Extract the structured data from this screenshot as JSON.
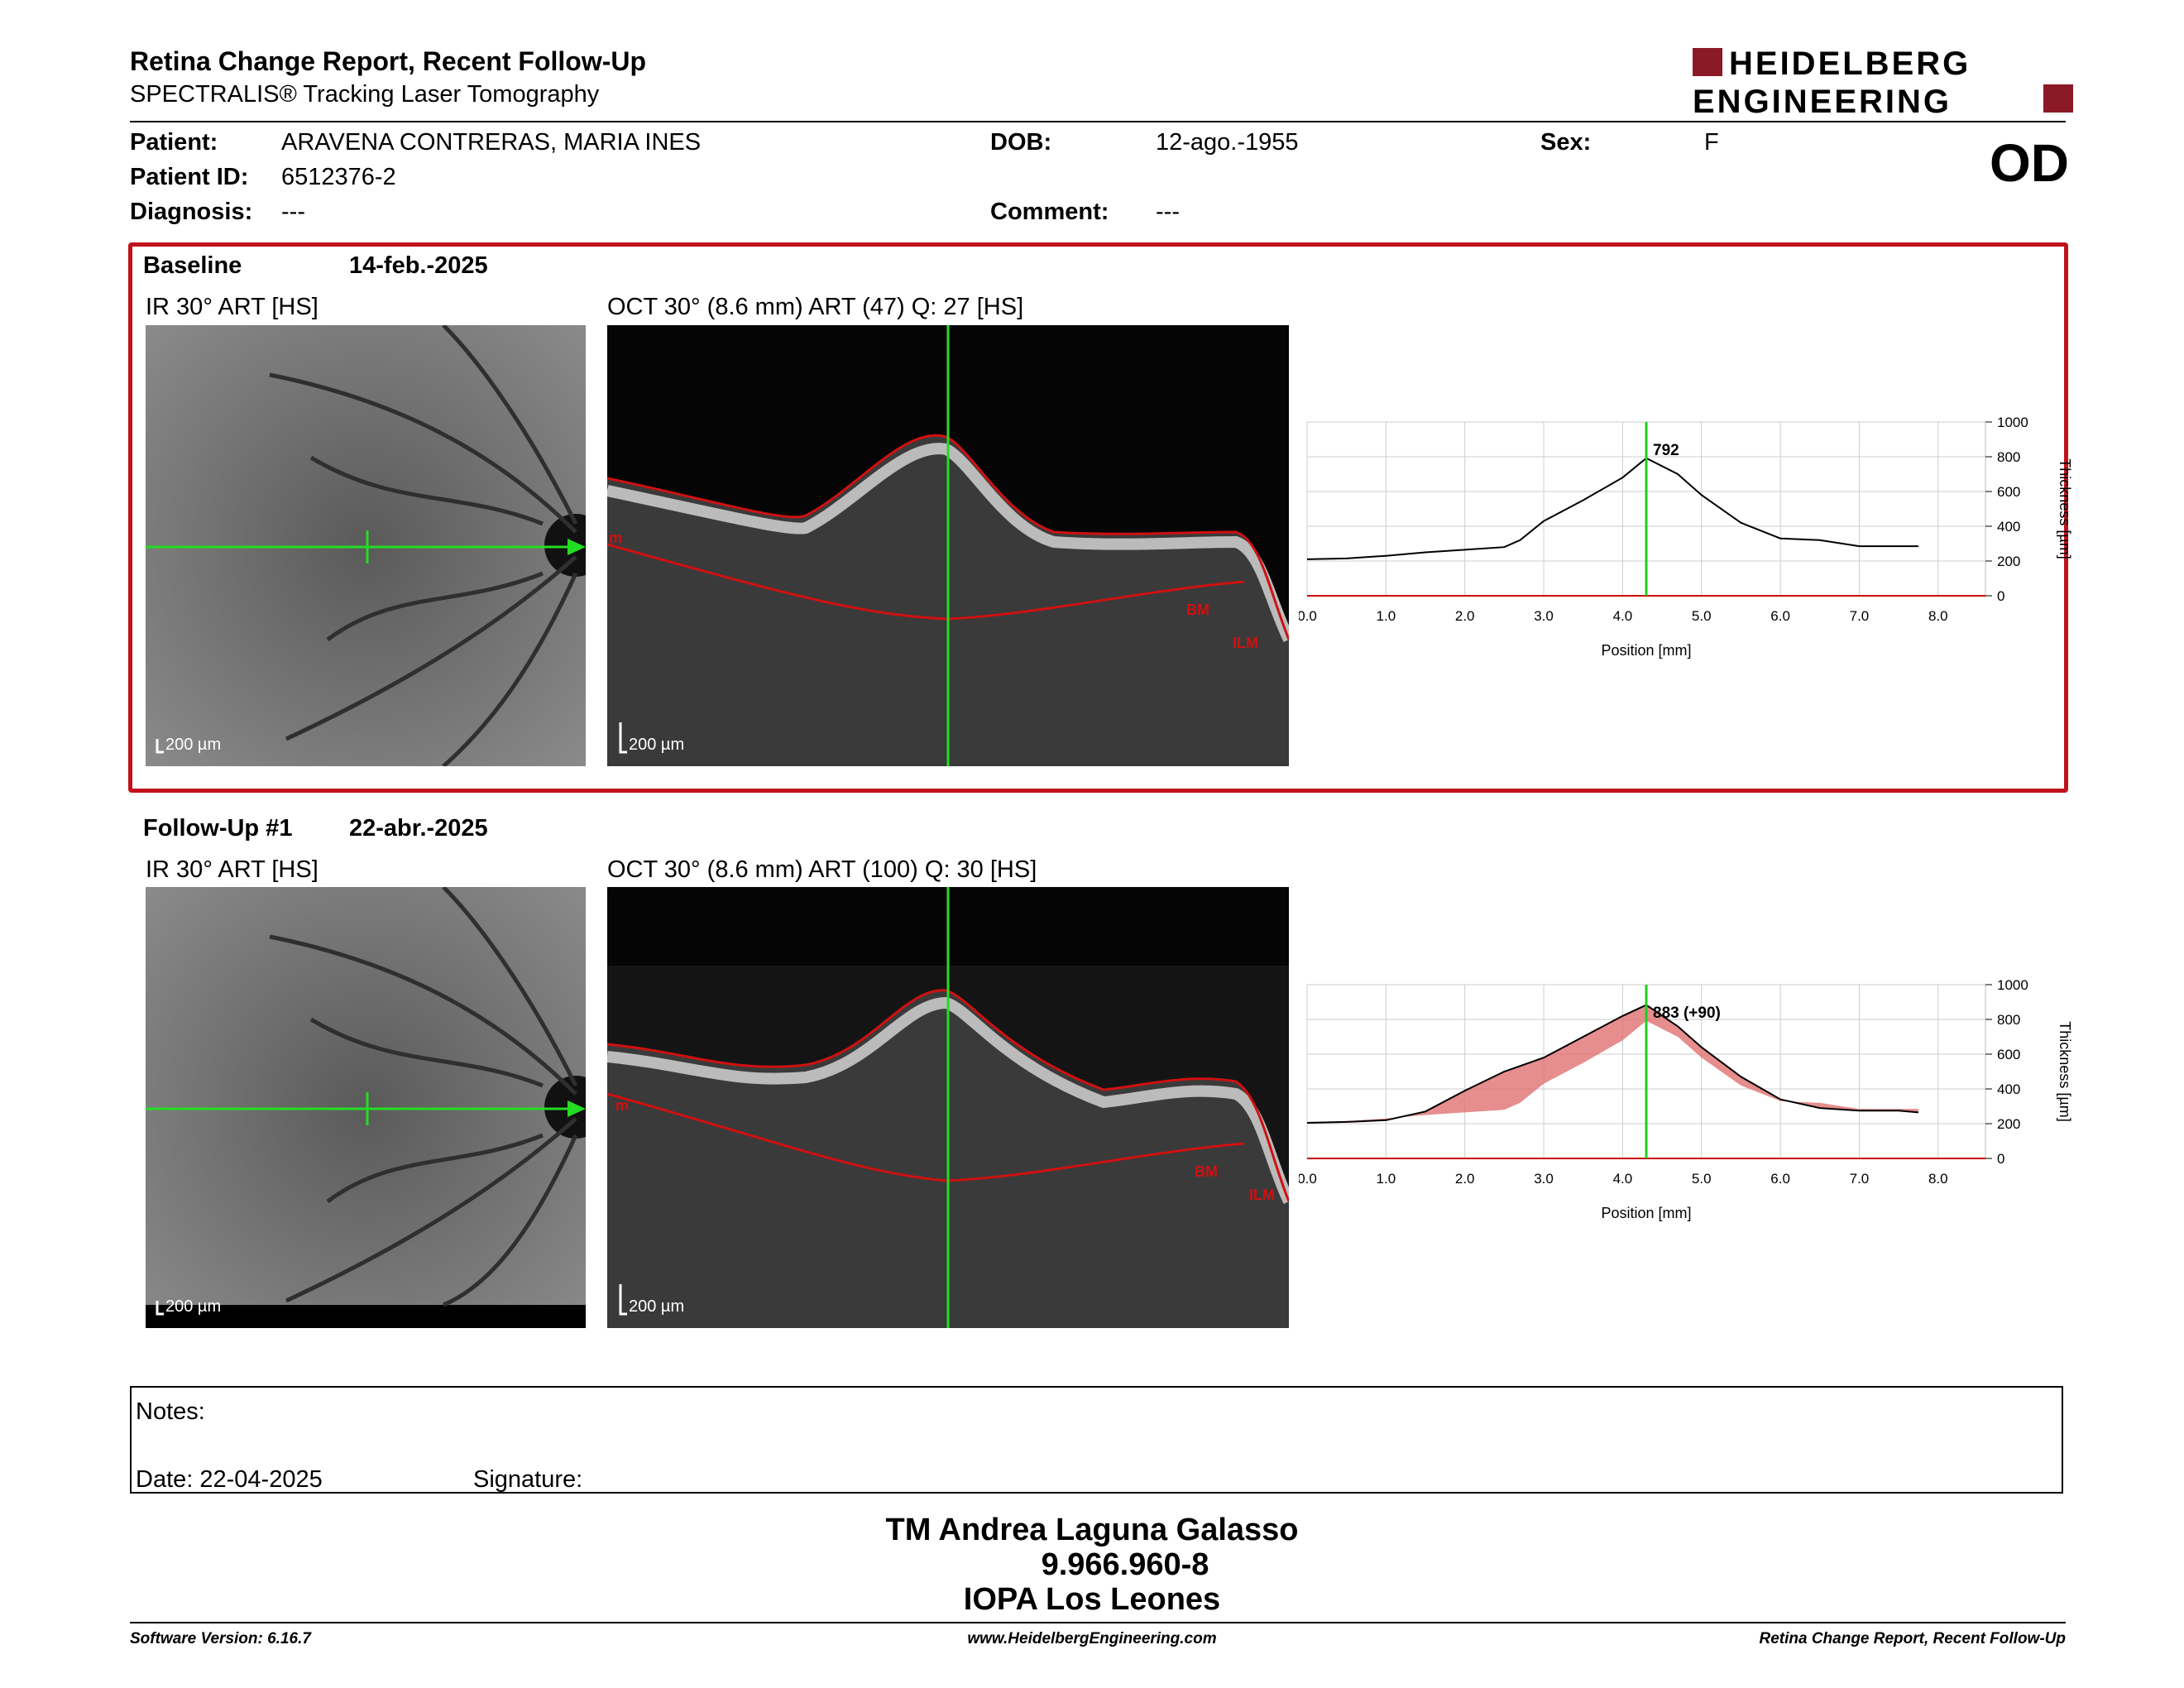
{
  "header": {
    "title": "Retina Change Report, Recent Follow-Up",
    "subtitle": "SPECTRALIS® Tracking Laser Tomography",
    "logo_line1": "HEIDELBERG",
    "logo_line2": "ENGINEERING",
    "brand_color": "#8b1a26"
  },
  "patient": {
    "patient_label": "Patient:",
    "patient_value": "ARAVENA CONTRERAS, MARIA INES",
    "id_label": "Patient ID:",
    "id_value": "6512376-2",
    "diagnosis_label": "Diagnosis:",
    "diagnosis_value": "---",
    "dob_label": "DOB:",
    "dob_value": "12-ago.-1955",
    "comment_label": "Comment:",
    "comment_value": "---",
    "sex_label": "Sex:",
    "sex_value": "F",
    "eye": "OD"
  },
  "baseline": {
    "label": "Baseline",
    "date": "14-feb.-2025",
    "ir_title": "IR 30° ART [HS]",
    "oct_title": "OCT 30° (8.6 mm) ART (47) Q: 27 [HS]",
    "scale": "200 µm",
    "layer_ilm": "ILM",
    "layer_bm": "BM",
    "layer_m": "m"
  },
  "followup": {
    "label": "Follow-Up #1",
    "date": "22-abr.-2025",
    "ir_title": "IR 30° ART [HS]",
    "oct_title": "OCT 30° (8.6 mm) ART (100) Q: 30 [HS]",
    "scale": "200 µm",
    "layer_ilm": "ILM",
    "layer_bm": "BM",
    "layer_m": "m"
  },
  "chart_data": [
    {
      "type": "line",
      "xlabel": "Position [mm]",
      "ylabel": "Thickness [µm]",
      "xlim": [
        0,
        8.6
      ],
      "ylim": [
        0,
        1000
      ],
      "xticks": [
        "0.0",
        "1.0",
        "2.0",
        "3.0",
        "4.0",
        "5.0",
        "6.0",
        "7.0",
        "8.0"
      ],
      "yticks": [
        "0",
        "200",
        "400",
        "600",
        "800",
        "1000"
      ],
      "cursor_x": 4.3,
      "cursor_label": "792",
      "series": [
        {
          "x": [
            0,
            0.5,
            1.0,
            1.5,
            2.0,
            2.5,
            2.7,
            3.0,
            3.5,
            4.0,
            4.3,
            4.7,
            5.0,
            5.5,
            6.0,
            6.5,
            7.0,
            7.5,
            7.75
          ],
          "y": [
            210,
            215,
            230,
            250,
            265,
            280,
            320,
            430,
            550,
            680,
            792,
            700,
            580,
            420,
            330,
            320,
            285,
            285,
            285
          ]
        }
      ]
    },
    {
      "type": "line",
      "xlabel": "Position [mm]",
      "ylabel": "Thickness [µm]",
      "xlim": [
        0,
        8.6
      ],
      "ylim": [
        0,
        1000
      ],
      "xticks": [
        "0.0",
        "1.0",
        "2.0",
        "3.0",
        "4.0",
        "5.0",
        "6.0",
        "7.0",
        "8.0"
      ],
      "yticks": [
        "0",
        "200",
        "400",
        "600",
        "800",
        "1000"
      ],
      "cursor_x": 4.3,
      "cursor_label": "883 (+90)",
      "series": [
        {
          "x": [
            0,
            0.5,
            1.0,
            1.5,
            2.0,
            2.5,
            3.0,
            3.5,
            4.0,
            4.3,
            4.7,
            5.0,
            5.5,
            6.0,
            6.5,
            7.0,
            7.5,
            7.75
          ],
          "y": [
            205,
            210,
            220,
            270,
            390,
            500,
            580,
            700,
            820,
            883,
            760,
            640,
            470,
            340,
            290,
            275,
            275,
            265
          ]
        }
      ]
    }
  ],
  "notes": {
    "notes_label": "Notes:",
    "date_label": "Date: 22-04-2025",
    "signature_label": "Signature:"
  },
  "signature": {
    "name": "TM Andrea Laguna Galasso",
    "rut": "9.966.960-8",
    "institution": "IOPA Los Leones"
  },
  "footer": {
    "software": "Software Version: 6.16.7",
    "url": "www.HeidelbergEngineering.com",
    "report": "Retina Change Report, Recent Follow-Up"
  }
}
